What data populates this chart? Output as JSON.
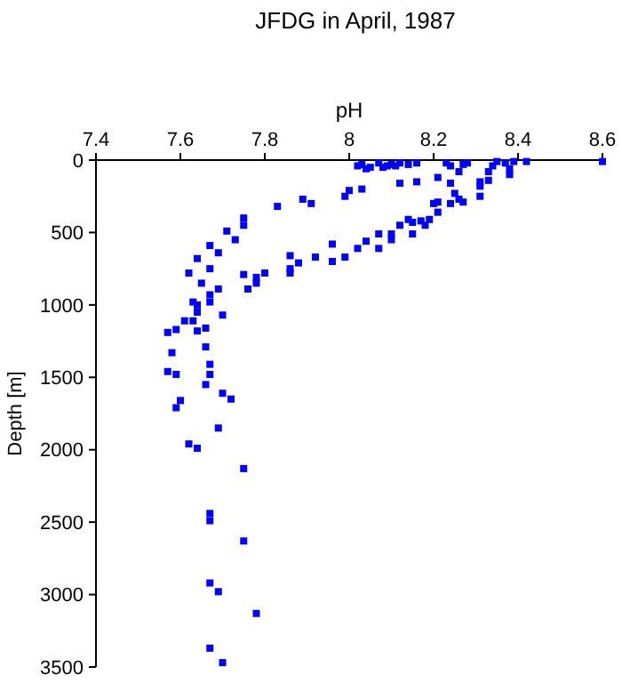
{
  "chart_data": {
    "type": "scatter",
    "title": "JFDG in April, 1987",
    "xlabel": "pH",
    "ylabel": "Depth [m]",
    "xlim": [
      7.4,
      8.6
    ],
    "xticks": [
      7.4,
      7.6,
      7.8,
      8,
      8.2,
      8.4,
      8.6
    ],
    "ylim": [
      3500,
      0
    ],
    "yticks": [
      0,
      500,
      1000,
      1500,
      2000,
      2500,
      3000,
      3500
    ],
    "marker": "square",
    "grid": false,
    "series": [
      {
        "color": "#0000ff",
        "x": [
          7.75,
          7.75,
          7.83,
          7.89,
          7.91,
          7.99,
          8.0,
          8.03,
          8.12,
          8.16,
          7.71,
          7.73,
          7.67,
          7.69,
          7.64,
          7.62,
          7.67,
          7.65,
          7.69,
          7.67,
          7.63,
          7.64,
          7.67,
          7.7,
          7.64,
          7.61,
          7.63,
          7.57,
          7.59,
          7.64,
          7.66,
          7.58,
          7.66,
          7.57,
          7.59,
          7.67,
          7.67,
          7.66,
          7.6,
          7.59,
          7.7,
          7.72,
          7.69,
          7.62,
          7.64,
          7.75,
          7.75,
          7.78,
          7.8,
          7.78,
          7.76,
          7.86,
          7.86,
          7.86,
          7.88,
          7.92,
          7.96,
          7.96,
          7.99,
          8.02,
          8.04,
          8.07,
          8.07,
          8.1,
          8.1,
          8.12,
          8.15,
          8.15,
          8.14,
          8.17,
          8.18,
          8.19,
          8.2,
          8.21,
          7.67,
          7.67,
          7.75,
          7.67,
          7.69,
          7.78,
          7.67,
          7.7,
          8.02,
          8.03,
          8.05,
          8.07,
          8.09,
          8.1,
          8.12,
          8.14,
          8.16,
          8.04,
          8.08,
          8.11,
          8.21,
          8.24,
          8.24,
          8.26,
          8.25,
          8.26,
          8.24,
          8.27,
          8.31,
          8.31,
          8.31,
          8.33,
          8.33,
          8.34,
          8.38,
          8.38,
          8.39,
          8.42,
          8.6,
          8.37,
          8.35,
          8.28,
          8.27,
          8.23,
          8.21
        ],
        "values": [
          400,
          450,
          320,
          270,
          300,
          250,
          210,
          200,
          160,
          150,
          490,
          550,
          590,
          640,
          680,
          780,
          750,
          850,
          890,
          930,
          980,
          1000,
          980,
          1070,
          1050,
          1110,
          1110,
          1190,
          1170,
          1180,
          1160,
          1330,
          1290,
          1460,
          1480,
          1480,
          1410,
          1550,
          1660,
          1710,
          1610,
          1650,
          1850,
          1960,
          1990,
          2130,
          790,
          810,
          780,
          850,
          890,
          750,
          780,
          660,
          710,
          670,
          580,
          700,
          670,
          610,
          560,
          510,
          610,
          510,
          550,
          450,
          430,
          510,
          410,
          420,
          450,
          410,
          300,
          360,
          2440,
          2490,
          2630,
          2920,
          2980,
          3130,
          3370,
          3470,
          40,
          30,
          50,
          20,
          40,
          30,
          20,
          30,
          20,
          60,
          50,
          40,
          120,
          40,
          160,
          80,
          230,
          270,
          300,
          290,
          250,
          150,
          180,
          80,
          140,
          40,
          60,
          100,
          10,
          10,
          10,
          20,
          10,
          20,
          30,
          20,
          290
        ]
      }
    ]
  }
}
